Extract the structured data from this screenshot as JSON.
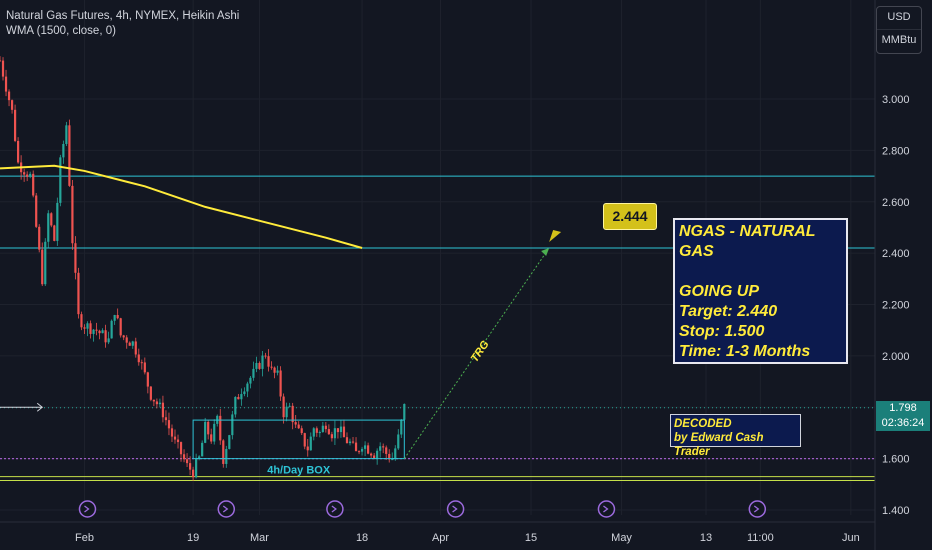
{
  "legend": {
    "symbol": "Natural Gas Futures, 4h, NYMEX, Heikin Ashi",
    "indicator": "WMA (1500, close, 0)"
  },
  "currency": {
    "unit": "USD",
    "sub_unit": "MMBtu"
  },
  "price_tag": {
    "price": "1.798",
    "countdown": "02:36:24"
  },
  "target_label": "2.444",
  "trend_label": "TRG",
  "box_label": "4h/Day  BOX",
  "info_box": {
    "title": "NGAS - NATURAL GAS",
    "lines": [
      "GOING UP",
      "Target: 2.440",
      "Stop: 1.500",
      "Time: 1-3 Months"
    ]
  },
  "decoded": {
    "line1": "DECODED",
    "line2": "by Edward Cash Trader"
  },
  "colors": {
    "background": "#131722",
    "up": "#26a69a",
    "down": "#ef5350",
    "wma": "#ffeb3b",
    "hline": "#2ec4d6",
    "trend": "#4caf50",
    "text": "#d1d4dc"
  },
  "chart_data": {
    "type": "candlestick",
    "y_ticks": [
      1.4,
      1.6,
      1.8,
      2.0,
      2.2,
      2.4,
      2.6,
      2.8,
      3.0
    ],
    "y_tick_labels": [
      "1.400",
      "1.600",
      "1.800",
      "2.000",
      "2.200",
      "2.400",
      "2.600",
      "2.800",
      "3.000"
    ],
    "ylim": [
      1.38,
      3.2
    ],
    "x_labels": [
      "Feb",
      "19",
      "Mar",
      "18",
      "Apr",
      "15",
      "May",
      "13",
      "11:00",
      "Jun"
    ],
    "x_label_days": [
      0,
      18,
      29,
      46,
      59,
      74,
      89,
      103,
      112,
      127
    ],
    "x_range_days": [
      -14,
      131
    ],
    "last_candle_day": 53,
    "series_points": [
      [
        -14,
        3.15
      ],
      [
        -12,
        2.95
      ],
      [
        -11,
        2.75
      ],
      [
        -9,
        2.7
      ],
      [
        -7,
        2.3
      ],
      [
        -6,
        2.55
      ],
      [
        -5,
        2.45
      ],
      [
        -4,
        2.75
      ],
      [
        -3,
        2.9
      ],
      [
        -2,
        2.45
      ],
      [
        -1,
        2.15
      ],
      [
        0,
        2.12
      ],
      [
        2,
        2.1
      ],
      [
        4,
        2.06
      ],
      [
        5,
        2.18
      ],
      [
        6,
        2.08
      ],
      [
        8,
        2.05
      ],
      [
        9,
        2.0
      ],
      [
        11,
        1.85
      ],
      [
        13,
        1.78
      ],
      [
        14,
        1.72
      ],
      [
        15,
        1.66
      ],
      [
        16,
        1.62
      ],
      [
        17,
        1.57
      ],
      [
        18,
        1.55
      ],
      [
        19,
        1.6
      ],
      [
        20,
        1.72
      ],
      [
        21,
        1.68
      ],
      [
        22,
        1.75
      ],
      [
        23,
        1.6
      ],
      [
        24,
        1.7
      ],
      [
        25,
        1.82
      ],
      [
        26,
        1.87
      ],
      [
        27,
        1.9
      ],
      [
        28,
        1.93
      ],
      [
        29,
        1.97
      ],
      [
        30,
        2.01
      ],
      [
        31,
        1.94
      ],
      [
        32,
        1.92
      ],
      [
        33,
        1.78
      ],
      [
        34,
        1.8
      ],
      [
        35,
        1.72
      ],
      [
        36,
        1.68
      ],
      [
        37,
        1.64
      ],
      [
        38,
        1.72
      ],
      [
        39,
        1.7
      ],
      [
        40,
        1.74
      ],
      [
        41,
        1.7
      ],
      [
        42,
        1.72
      ],
      [
        43,
        1.68
      ],
      [
        44,
        1.66
      ],
      [
        45,
        1.62
      ],
      [
        46,
        1.66
      ],
      [
        47,
        1.64
      ],
      [
        48,
        1.62
      ],
      [
        49,
        1.65
      ],
      [
        50,
        1.62
      ],
      [
        51,
        1.6
      ],
      [
        52,
        1.68
      ],
      [
        53,
        1.8
      ]
    ],
    "wma_points": [
      [
        -14,
        2.73
      ],
      [
        -5,
        2.74
      ],
      [
        0,
        2.72
      ],
      [
        10,
        2.66
      ],
      [
        20,
        2.58
      ],
      [
        30,
        2.52
      ],
      [
        40,
        2.46
      ],
      [
        46,
        2.42
      ]
    ],
    "hlines": [
      2.7,
      2.42
    ],
    "pink_line": 1.6,
    "green_lines": [
      1.53,
      1.515
    ],
    "dotted_price": 1.798,
    "box": {
      "x0": 18,
      "x1": 53,
      "y0": 1.6,
      "y1": 1.75
    },
    "trend": {
      "x0": 53,
      "y0": 1.6,
      "x1": 77,
      "y1": 2.42
    },
    "arrow_line": {
      "x0": -14,
      "x1": -7,
      "y": 1.8
    },
    "event_marker_days": [
      0,
      23,
      41,
      61,
      86,
      111
    ]
  }
}
